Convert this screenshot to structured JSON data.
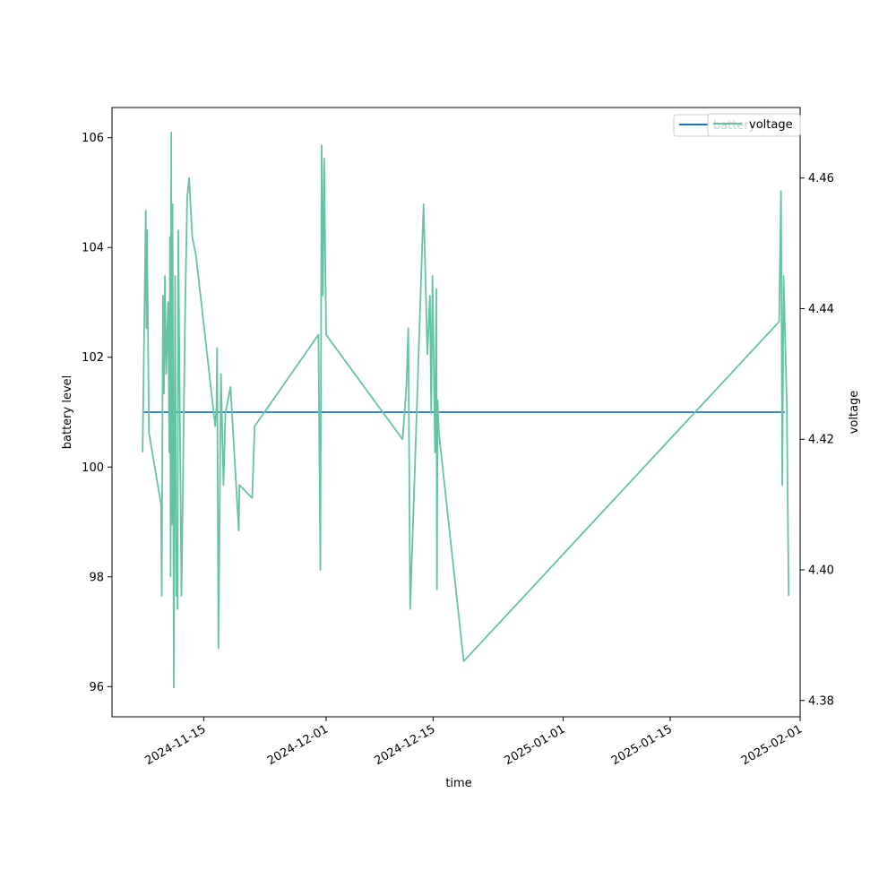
{
  "chart_data": {
    "type": "line",
    "xlabel": "time",
    "xlim": [
      "2024-11-03",
      "2025-02-01"
    ],
    "x_ticks": [
      "2024-11-15",
      "2024-12-01",
      "2024-12-15",
      "2025-01-01",
      "2025-01-15",
      "2025-02-01"
    ],
    "left_axis": {
      "label": "battery level",
      "ylim": [
        95.45,
        106.55
      ],
      "ticks": [
        "96",
        "98",
        "100",
        "102",
        "104",
        "106"
      ]
    },
    "right_axis": {
      "label": "voltage",
      "ylim": [
        4.3775,
        4.4708
      ],
      "ticks": [
        "4.38",
        "4.40",
        "4.42",
        "4.44",
        "4.46"
      ]
    },
    "legend": {
      "placement": "upper-right",
      "entries_left": [
        "battery"
      ],
      "entries_right": [
        "voltage"
      ]
    },
    "grid": false,
    "series": [
      {
        "name": "battery",
        "axis": "left",
        "color": "#1f77b4",
        "points": [
          [
            "2024-11-07",
            101
          ],
          [
            "2025-01-30",
            101
          ]
        ]
      },
      {
        "name": "voltage",
        "axis": "right",
        "color": "#66c2a5",
        "points": [
          [
            "2024-11-07 00:00",
            4.418
          ],
          [
            "2024-11-07 10:00",
            4.455
          ],
          [
            "2024-11-07 12:00",
            4.437
          ],
          [
            "2024-11-07 14:00",
            4.452
          ],
          [
            "2024-11-07 20:00",
            4.421
          ],
          [
            "2024-11-09 10:00",
            4.41
          ],
          [
            "2024-11-09 12:00",
            4.396
          ],
          [
            "2024-11-09 16:00",
            4.442
          ],
          [
            "2024-11-09 19:00",
            4.427
          ],
          [
            "2024-11-09 22:00",
            4.445
          ],
          [
            "2024-11-10 02:00",
            4.43
          ],
          [
            "2024-11-10 08:00",
            4.441
          ],
          [
            "2024-11-10 12:00",
            4.418
          ],
          [
            "2024-11-10 14:00",
            4.451
          ],
          [
            "2024-11-10 16:00",
            4.399
          ],
          [
            "2024-11-10 18:00",
            4.467
          ],
          [
            "2024-11-10 20:00",
            4.407
          ],
          [
            "2024-11-10 22:00",
            4.456
          ],
          [
            "2024-11-11 02:00",
            4.382
          ],
          [
            "2024-11-11 06:00",
            4.445
          ],
          [
            "2024-11-11 10:00",
            4.396
          ],
          [
            "2024-11-11 12:00",
            4.402
          ],
          [
            "2024-11-11 14:00",
            4.394
          ],
          [
            "2024-11-11 16:00",
            4.452
          ],
          [
            "2024-11-12 02:00",
            4.396
          ],
          [
            "2024-11-12 14:00",
            4.441
          ],
          [
            "2024-11-12 20:00",
            4.457
          ],
          [
            "2024-11-13 02:00",
            4.46
          ],
          [
            "2024-11-13 12:00",
            4.451
          ],
          [
            "2024-11-14 00:00",
            4.448
          ],
          [
            "2024-11-16 12:00",
            4.422
          ],
          [
            "2024-11-16 16:00",
            4.425
          ],
          [
            "2024-11-16 18:00",
            4.434
          ],
          [
            "2024-11-16 22:00",
            4.388
          ],
          [
            "2024-11-17 06:00",
            4.43
          ],
          [
            "2024-11-17 14:00",
            4.413
          ],
          [
            "2024-11-17 20:00",
            4.424
          ],
          [
            "2024-11-18 12:00",
            4.428
          ],
          [
            "2024-11-19 14:00",
            4.406
          ],
          [
            "2024-11-19 16:00",
            4.413
          ],
          [
            "2024-11-21 08:00",
            4.411
          ],
          [
            "2024-11-21 16:00",
            4.422
          ],
          [
            "2024-11-30 00:00",
            4.436
          ],
          [
            "2024-11-30 06:00",
            4.4
          ],
          [
            "2024-11-30 10:00",
            4.465
          ],
          [
            "2024-11-30 14:00",
            4.442
          ],
          [
            "2024-11-30 18:00",
            4.463
          ],
          [
            "2024-12-01 00:00",
            4.436
          ],
          [
            "2024-12-11 00:00",
            4.42
          ],
          [
            "2024-12-11 12:00",
            4.428
          ],
          [
            "2024-12-11 18:00",
            4.437
          ],
          [
            "2024-12-12 00:00",
            4.394
          ],
          [
            "2024-12-13 18:00",
            4.456
          ],
          [
            "2024-12-14 06:00",
            4.433
          ],
          [
            "2024-12-14 14:00",
            4.442
          ],
          [
            "2024-12-14 18:00",
            4.424
          ],
          [
            "2024-12-14 22:00",
            4.445
          ],
          [
            "2024-12-15 06:00",
            4.418
          ],
          [
            "2024-12-15 10:00",
            4.443
          ],
          [
            "2024-12-15 12:00",
            4.397
          ],
          [
            "2024-12-15 14:00",
            4.426
          ],
          [
            "2024-12-15 18:00",
            4.421
          ],
          [
            "2024-12-19 00:00",
            4.386
          ],
          [
            "2025-01-29 06:00",
            4.438
          ],
          [
            "2025-01-29 12:00",
            4.458
          ],
          [
            "2025-01-29 16:00",
            4.413
          ],
          [
            "2025-01-29 20:00",
            4.445
          ],
          [
            "2025-01-30 06:00",
            4.426
          ],
          [
            "2025-01-30 12:00",
            4.396
          ]
        ]
      }
    ]
  }
}
